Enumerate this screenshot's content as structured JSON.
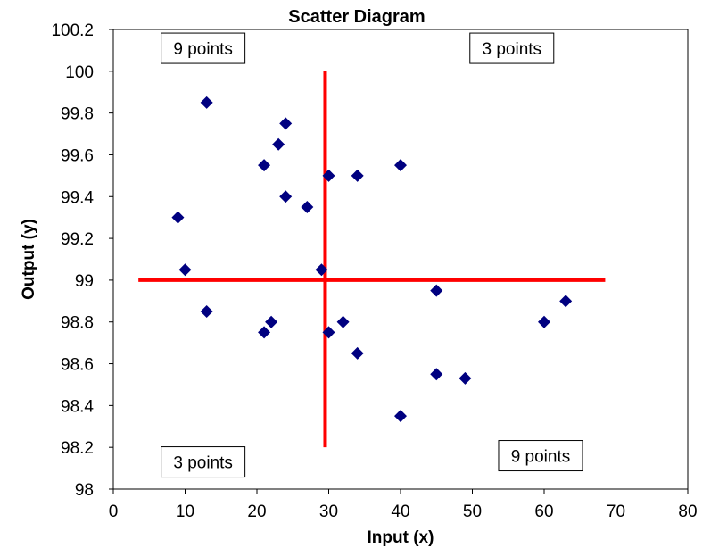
{
  "chart_data": {
    "type": "scatter",
    "title": "Scatter Diagram",
    "xlabel": "Input (x)",
    "ylabel": "Output (y)",
    "xlim": [
      0,
      80
    ],
    "ylim": [
      98,
      100.2
    ],
    "xticks": [
      0,
      10,
      20,
      30,
      40,
      50,
      60,
      70,
      80
    ],
    "yticks": [
      98,
      98.2,
      98.4,
      98.6,
      98.8,
      99,
      99.2,
      99.4,
      99.6,
      99.8,
      100,
      100.2
    ],
    "grid": false,
    "legend": "none",
    "series": [
      {
        "marker": "diamond",
        "color": "#000080",
        "x": [
          13,
          24,
          23,
          21,
          30,
          34,
          40,
          24,
          27,
          9,
          10,
          29,
          13,
          22,
          21,
          30,
          32,
          34,
          40,
          45,
          45,
          49,
          60,
          63
        ],
        "y": [
          99.85,
          99.75,
          99.65,
          99.55,
          99.5,
          99.5,
          99.55,
          99.4,
          99.35,
          99.3,
          99.05,
          99.05,
          98.85,
          98.8,
          98.75,
          98.75,
          98.8,
          98.65,
          98.35,
          98.95,
          98.55,
          98.53,
          98.8,
          98.9
        ]
      }
    ],
    "reference_lines": [
      {
        "orientation": "vertical",
        "x": 29.5,
        "y_range": [
          98.2,
          100
        ],
        "color": "#ff0000"
      },
      {
        "orientation": "horizontal",
        "y": 99,
        "x_range": [
          3.5,
          68.5
        ],
        "color": "#ff0000"
      }
    ],
    "annotations": [
      {
        "text": "9 points",
        "x": 12.5,
        "y": 100.11
      },
      {
        "text": "3 points",
        "x": 55.5,
        "y": 100.11
      },
      {
        "text": "3 points",
        "x": 12.5,
        "y": 98.13
      },
      {
        "text": "9 points",
        "x": 59.5,
        "y": 98.16
      }
    ]
  }
}
